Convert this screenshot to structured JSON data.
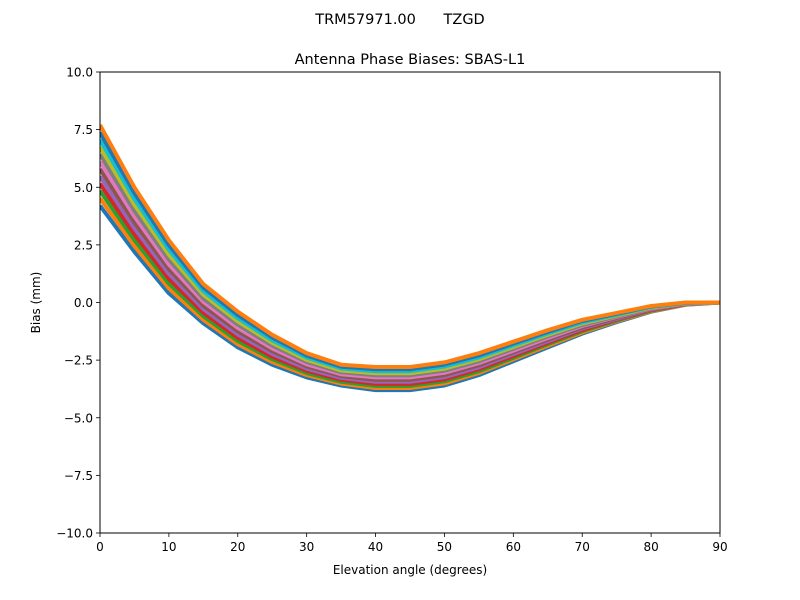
{
  "suptitle": "TRM57971.00      TZGD",
  "chart_data": {
    "type": "line",
    "title": "Antenna Phase Biases: SBAS-L1",
    "xlabel": "Elevation angle (degrees)",
    "ylabel": "Bias (mm)",
    "xlim": [
      0,
      90
    ],
    "ylim": [
      -10,
      10
    ],
    "xticks": [
      0,
      10,
      20,
      30,
      40,
      50,
      60,
      70,
      80,
      90
    ],
    "yticks": [
      10.0,
      7.5,
      5.0,
      2.5,
      0.0,
      -2.5,
      -5.0,
      -7.5,
      -10.0
    ],
    "ytick_labels": [
      "10.0",
      "7.5",
      "5.0",
      "2.5",
      "0.0",
      "−2.5",
      "−5.0",
      "−7.5",
      "−10.0"
    ],
    "grid": false,
    "colors": [
      "#1f77b4",
      "#ff7f0e",
      "#2ca02c",
      "#d62728",
      "#9467bd",
      "#8c564b",
      "#e377c2",
      "#7f7f7f",
      "#bcbd22",
      "#17becf"
    ],
    "x": [
      0,
      5,
      10,
      15,
      20,
      25,
      30,
      35,
      40,
      45,
      50,
      55,
      60,
      65,
      70,
      75,
      80,
      85,
      90
    ],
    "series": [
      {
        "values": [
          4.2,
          2.2,
          0.4,
          -0.9,
          -1.95,
          -2.7,
          -3.25,
          -3.6,
          -3.8,
          -3.8,
          -3.6,
          -3.15,
          -2.55,
          -1.95,
          -1.35,
          -0.85,
          -0.4,
          -0.1,
          0
        ]
      },
      {
        "values": [
          4.52,
          2.45,
          0.61,
          -0.75,
          -1.81,
          -2.58,
          -3.15,
          -3.52,
          -3.71,
          -3.71,
          -3.51,
          -3.06,
          -2.47,
          -1.88,
          -1.3,
          -0.81,
          -0.38,
          -0.09,
          0
        ]
      },
      {
        "values": [
          4.84,
          2.71,
          0.82,
          -0.59,
          -1.67,
          -2.46,
          -3.06,
          -3.44,
          -3.62,
          -3.62,
          -3.42,
          -2.98,
          -2.4,
          -1.81,
          -1.24,
          -0.78,
          -0.35,
          -0.08,
          0
        ]
      },
      {
        "values": [
          5.15,
          2.96,
          1.03,
          -0.44,
          -1.53,
          -2.35,
          -2.96,
          -3.35,
          -3.53,
          -3.53,
          -3.33,
          -2.89,
          -2.32,
          -1.75,
          -1.19,
          -0.74,
          -0.33,
          -0.07,
          0
        ]
      },
      {
        "values": [
          5.47,
          3.22,
          1.24,
          -0.28,
          -1.39,
          -2.23,
          -2.87,
          -3.27,
          -3.44,
          -3.44,
          -3.24,
          -2.81,
          -2.24,
          -1.68,
          -1.13,
          -0.71,
          -0.31,
          -0.06,
          0
        ]
      },
      {
        "values": [
          5.79,
          3.47,
          1.45,
          -0.13,
          -1.25,
          -2.11,
          -2.77,
          -3.19,
          -3.35,
          -3.35,
          -3.15,
          -2.72,
          -2.16,
          -1.61,
          -1.08,
          -0.67,
          -0.29,
          -0.05,
          0
        ]
      },
      {
        "values": [
          6.11,
          3.73,
          1.65,
          0.03,
          -1.1,
          -1.99,
          -2.68,
          -3.11,
          -3.25,
          -3.25,
          -3.05,
          -2.63,
          -2.09,
          -1.54,
          -1.02,
          -0.63,
          -0.26,
          -0.05,
          0
        ]
      },
      {
        "values": [
          6.43,
          3.98,
          1.86,
          0.18,
          -0.96,
          -1.87,
          -2.58,
          -3.03,
          -3.16,
          -3.16,
          -2.96,
          -2.55,
          -2.01,
          -1.47,
          -0.97,
          -0.6,
          -0.24,
          -0.04,
          0
        ]
      },
      {
        "values": [
          6.75,
          4.24,
          2.07,
          0.34,
          -0.82,
          -1.75,
          -2.49,
          -2.95,
          -3.07,
          -3.07,
          -2.87,
          -2.46,
          -1.93,
          -1.4,
          -0.91,
          -0.56,
          -0.22,
          -0.03,
          0
        ]
      },
      {
        "values": [
          7.06,
          4.49,
          2.28,
          0.49,
          -0.68,
          -1.64,
          -2.39,
          -2.86,
          -2.98,
          -2.98,
          -2.78,
          -2.38,
          -1.86,
          -1.34,
          -0.86,
          -0.53,
          -0.19,
          -0.02,
          0
        ]
      },
      {
        "values": [
          7.38,
          4.75,
          2.49,
          0.65,
          -0.54,
          -1.52,
          -2.3,
          -2.78,
          -2.89,
          -2.89,
          -2.69,
          -2.29,
          -1.78,
          -1.27,
          -0.8,
          -0.49,
          -0.17,
          -0.01,
          0
        ]
      },
      {
        "values": [
          7.7,
          5.0,
          2.7,
          0.8,
          -0.4,
          -1.4,
          -2.2,
          -2.7,
          -2.8,
          -2.8,
          -2.6,
          -2.2,
          -1.7,
          -1.2,
          -0.75,
          -0.45,
          -0.15,
          0.0,
          0
        ]
      }
    ]
  }
}
